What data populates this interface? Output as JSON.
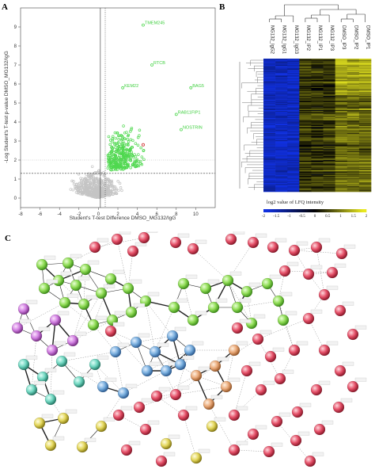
{
  "panels": {
    "a": "A",
    "b": "B",
    "c": "C"
  },
  "chart_data": [
    {
      "type": "scatter",
      "xlabel": "Student's T-test Difference DMSO_MG132/IgG",
      "ylabel": "-Log Student's T-test p-value DMSO_MG132/IgG",
      "xlim": [
        -8,
        12
      ],
      "ylim": [
        -0.5,
        10
      ],
      "x_ticks": [
        "-8",
        "-6",
        "-4",
        "-2",
        "0",
        "2",
        "4",
        "6",
        "8",
        "10"
      ],
      "y_ticks": [
        "0",
        "1",
        "2",
        "3",
        "4",
        "5",
        "6",
        "7",
        "8",
        "9"
      ],
      "threshold_y": 1.3,
      "threshold_x": [
        0.2,
        0.7
      ],
      "colors": {
        "background": "#c4c4c4",
        "significant": "#4fd84f",
        "highlight": "#d23b3b"
      },
      "labeled_points": [
        {
          "name": "TMEM245",
          "x": 4.6,
          "y": 9.1
        },
        {
          "name": "RTCB",
          "x": 5.5,
          "y": 7.0
        },
        {
          "name": "BAG5",
          "x": 9.5,
          "y": 5.8
        },
        {
          "name": "NOSTRIN",
          "x": 8.5,
          "y": 3.6
        },
        {
          "name": "RAB11FIP1",
          "x": 8.0,
          "y": 4.4
        },
        {
          "name": "KEM22",
          "x": 2.5,
          "y": 5.8
        }
      ]
    },
    {
      "type": "heatmap",
      "samples": [
        "MG132_IgG2",
        "MG132_IgG1",
        "MG132_IgG3",
        "MG132_IP2",
        "MG132_IP1",
        "MG132_IP3",
        "DMSO_IP3",
        "DMSO_IP2",
        "DMSO_IP1"
      ],
      "legend_title": "log2 value of LFQ intensity",
      "legend_ticks": [
        "-2",
        "-1.5",
        "-1",
        "-0.5",
        "0",
        "0.5",
        "1",
        "1.5",
        "2"
      ],
      "colors": {
        "low": "#1030e0",
        "mid": "#000000",
        "high": "#e8e820"
      }
    }
  ]
}
